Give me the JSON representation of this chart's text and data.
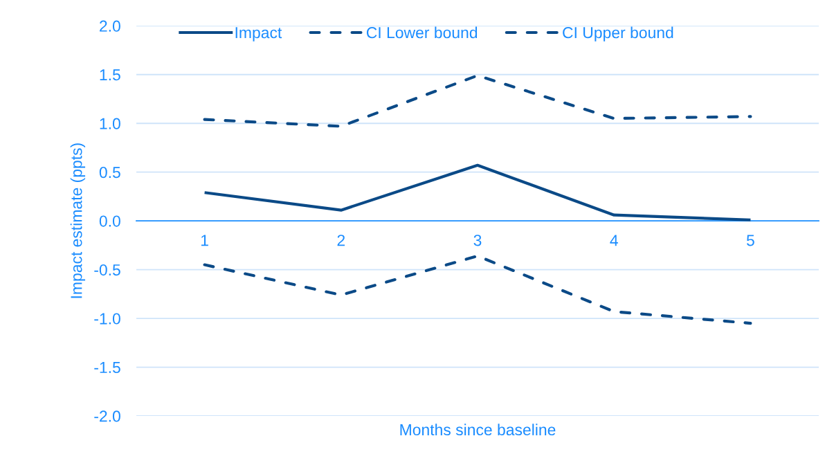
{
  "chart_data": {
    "type": "line",
    "xlabel": "Months since baseline",
    "ylabel": "Impact estimate (ppts)",
    "categories": [
      "1",
      "2",
      "3",
      "4",
      "5"
    ],
    "series": [
      {
        "name": "Impact",
        "color": "#0b4a87",
        "line_style": "solid",
        "values": [
          0.29,
          0.11,
          0.57,
          0.06,
          0.01
        ]
      },
      {
        "name": "CI Lower bound",
        "color": "#0b4a87",
        "line_style": "dashed",
        "values": [
          -0.45,
          -0.76,
          -0.36,
          -0.93,
          -1.05
        ]
      },
      {
        "name": "CI Upper bound",
        "color": "#0b4a87",
        "line_style": "dashed",
        "values": [
          1.04,
          0.97,
          1.49,
          1.05,
          1.07
        ]
      }
    ],
    "ylim": [
      -2,
      2
    ],
    "yticks": [
      {
        "value": -2,
        "label": "-2.0"
      },
      {
        "value": -1.5,
        "label": "-1.5"
      },
      {
        "value": -1,
        "label": "-1.0"
      },
      {
        "value": -0.5,
        "label": "-0.5"
      },
      {
        "value": 0,
        "label": "0.0"
      },
      {
        "value": 0.5,
        "label": "0.5"
      },
      {
        "value": 1,
        "label": "1.0"
      },
      {
        "value": 1.5,
        "label": "1.5"
      },
      {
        "value": 2,
        "label": "2.0"
      }
    ],
    "grid": "y",
    "legend": "top"
  }
}
